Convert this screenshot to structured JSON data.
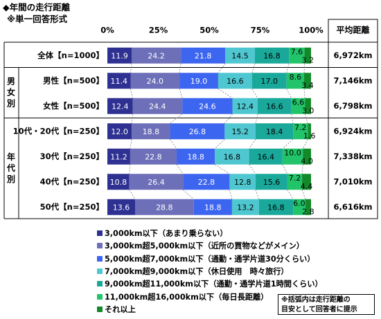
{
  "header": {
    "title": "◆年間の走行距離",
    "subtitle": "※単一回答形式"
  },
  "avg_column_header": "平均距離",
  "groups": [
    {
      "label": "男女別",
      "rows": [
        1,
        2
      ]
    },
    {
      "label": "年代別",
      "rows": [
        3,
        4,
        5,
        6
      ]
    }
  ],
  "note": {
    "line1": "※括弧内は走行距離の",
    "line2": "目安として回答者に提示"
  },
  "chart_data": {
    "type": "bar",
    "orientation": "horizontal",
    "stacked": true,
    "title": "年間の走行距離",
    "xlim": [
      0,
      100
    ],
    "x_ticks": [
      "0%",
      "25%",
      "50%",
      "75%",
      "100%"
    ],
    "categories": [
      "全体【n=1000】",
      "男性【n=500】",
      "女性【n=500】",
      "10代・20代【n=250】",
      "30代【n=250】",
      "40代【n=250】",
      "50代【n=250】"
    ],
    "averages": [
      "6,972km",
      "7,146km",
      "6,798km",
      "6,924km",
      "7,338km",
      "7,010km",
      "6,616km"
    ],
    "legend_position": "bottom",
    "series": [
      {
        "name": "3,000km以下（あまり乗らない）",
        "color": "#2E3192",
        "values": [
          11.9,
          11.4,
          12.4,
          12.0,
          11.2,
          10.8,
          13.6
        ]
      },
      {
        "name": "3,000km超5,000km以下（近所の買物などがメイン）",
        "color": "#6D6FB8",
        "values": [
          24.2,
          24.0,
          24.4,
          18.8,
          22.8,
          26.4,
          28.8
        ]
      },
      {
        "name": "5,000km超7,000km以下（通勤・通学片道30分くらい）",
        "color": "#3D66F0",
        "values": [
          21.8,
          19.0,
          24.6,
          26.8,
          18.8,
          22.8,
          18.8
        ]
      },
      {
        "name": "7,000km超9,000km以下（休日使用　時々旅行）",
        "color": "#4FC7D0",
        "values": [
          14.5,
          16.6,
          12.4,
          15.2,
          16.8,
          12.8,
          13.2
        ]
      },
      {
        "name": "9,000km超11,000km以下（通勤・通学片道1時間くらい）",
        "color": "#19A89A",
        "values": [
          16.8,
          17.0,
          16.6,
          18.4,
          16.4,
          15.6,
          16.8
        ]
      },
      {
        "name": "11,000km超16,000km以下（毎日長距離）",
        "color": "#22C46A",
        "values": [
          7.6,
          8.6,
          6.6,
          7.2,
          10.0,
          7.2,
          6.0
        ]
      },
      {
        "name": "それ以上",
        "color": "#138A2A",
        "values": [
          3.2,
          3.4,
          3.0,
          1.6,
          4.0,
          4.4,
          2.8
        ]
      }
    ]
  }
}
